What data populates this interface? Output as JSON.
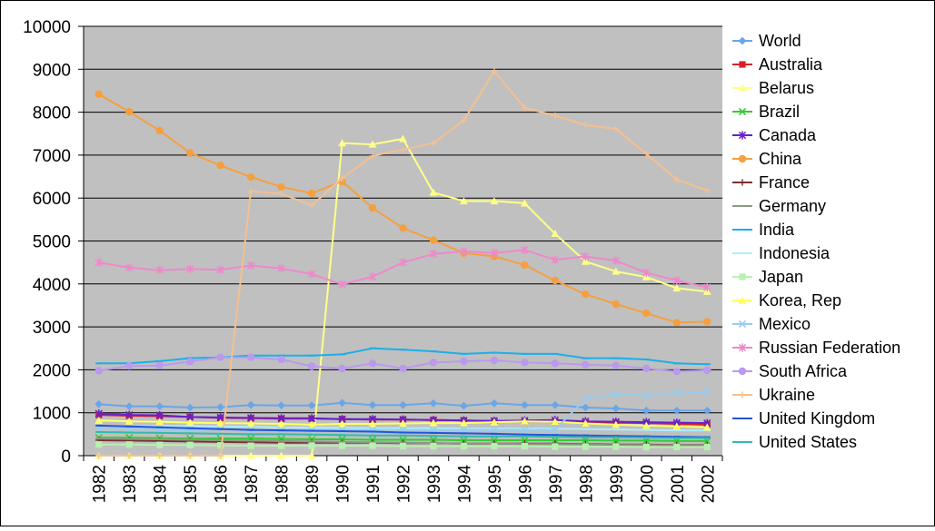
{
  "chart_data": {
    "type": "line",
    "title": "",
    "xlabel": "",
    "ylabel": "",
    "ylim": [
      0,
      10000
    ],
    "ytick_step": 1000,
    "grid": true,
    "plot_background": "#c0c0c0",
    "legend_position": "right",
    "x": [
      "1982",
      "1983",
      "1984",
      "1985",
      "1986",
      "1987",
      "1988",
      "1989",
      "1990",
      "1991",
      "1992",
      "1993",
      "1994",
      "1995",
      "1996",
      "1997",
      "1998",
      "1999",
      "2000",
      "2001",
      "2002"
    ],
    "y_ticks": [
      "0",
      "1000",
      "2000",
      "3000",
      "4000",
      "5000",
      "6000",
      "7000",
      "8000",
      "9000",
      "10000"
    ],
    "series": [
      {
        "name": "World",
        "color": "#6aa6e8",
        "marker": "diamond",
        "values": [
          1200,
          1150,
          1150,
          1120,
          1130,
          1180,
          1170,
          1170,
          1230,
          1180,
          1180,
          1220,
          1160,
          1220,
          1180,
          1180,
          1120,
          1100,
          1050,
          1050,
          1050
        ]
      },
      {
        "name": "Australia",
        "color": "#d8202a",
        "marker": "square",
        "values": [
          950,
          930,
          920,
          900,
          880,
          870,
          860,
          860,
          850,
          840,
          840,
          830,
          820,
          810,
          800,
          790,
          780,
          770,
          760,
          740,
          720
        ]
      },
      {
        "name": "Belarus",
        "color": "#ffff88",
        "marker": "triangle",
        "values": [
          0,
          0,
          0,
          0,
          0,
          0,
          0,
          0,
          7280,
          7250,
          7380,
          6130,
          5930,
          5930,
          5880,
          5170,
          4520,
          4290,
          4160,
          3900,
          3820
        ]
      },
      {
        "name": "Brazil",
        "color": "#33cc33",
        "marker": "x",
        "values": [
          420,
          420,
          410,
          400,
          400,
          400,
          390,
          380,
          380,
          370,
          370,
          370,
          360,
          360,
          360,
          360,
          360,
          350,
          350,
          340,
          340
        ]
      },
      {
        "name": "Canada",
        "color": "#6622cc",
        "marker": "star",
        "values": [
          980,
          950,
          940,
          900,
          890,
          880,
          870,
          870,
          850,
          850,
          840,
          830,
          820,
          810,
          820,
          830,
          800,
          790,
          780,
          770,
          760
        ]
      },
      {
        "name": "China",
        "color": "#f4a040",
        "marker": "circle",
        "values": [
          8420,
          8010,
          7570,
          7050,
          6760,
          6490,
          6260,
          6110,
          6390,
          5770,
          5300,
          5020,
          4720,
          4640,
          4440,
          4080,
          3760,
          3530,
          3320,
          3100,
          3120
        ]
      },
      {
        "name": "France",
        "color": "#7a3030",
        "marker": "plus",
        "values": [
          360,
          350,
          340,
          330,
          320,
          310,
          300,
          300,
          300,
          300,
          290,
          290,
          280,
          280,
          280,
          280,
          270,
          260,
          260,
          250,
          250
        ]
      },
      {
        "name": "Germany",
        "color": "#8a9a80",
        "marker": "dash",
        "values": [
          400,
          390,
          380,
          370,
          360,
          350,
          340,
          330,
          320,
          310,
          300,
          290,
          280,
          280,
          270,
          270,
          260,
          250,
          250,
          240,
          240
        ]
      },
      {
        "name": "India",
        "color": "#1ab0e8",
        "marker": "dash",
        "values": [
          2150,
          2150,
          2200,
          2270,
          2290,
          2330,
          2330,
          2330,
          2360,
          2500,
          2470,
          2430,
          2370,
          2400,
          2370,
          2370,
          2270,
          2270,
          2240,
          2150,
          2130
        ]
      },
      {
        "name": "Indonesia",
        "color": "#aaeeff",
        "marker": "dash",
        "values": [
          700,
          690,
          690,
          690,
          680,
          670,
          660,
          650,
          650,
          640,
          640,
          640,
          630,
          630,
          630,
          630,
          620,
          610,
          600,
          590,
          590
        ]
      },
      {
        "name": "Japan",
        "color": "#b8f0b0",
        "marker": "square",
        "values": [
          260,
          260,
          250,
          250,
          240,
          230,
          230,
          230,
          230,
          230,
          220,
          220,
          220,
          220,
          220,
          210,
          210,
          210,
          200,
          200,
          200
        ]
      },
      {
        "name": "Korea, Rep",
        "color": "#ffff66",
        "marker": "triangle",
        "values": [
          820,
          800,
          790,
          770,
          760,
          750,
          740,
          720,
          740,
          740,
          750,
          760,
          760,
          780,
          800,
          790,
          750,
          720,
          700,
          680,
          660
        ]
      },
      {
        "name": "Mexico",
        "color": "#99ccee",
        "marker": "x",
        "values": [
          620,
          610,
          610,
          600,
          610,
          600,
          600,
          600,
          600,
          600,
          600,
          600,
          600,
          600,
          600,
          600,
          1330,
          1430,
          1400,
          1460,
          1490
        ]
      },
      {
        "name": "Russian Federation",
        "color": "#ee88cc",
        "marker": "star",
        "values": [
          4500,
          4380,
          4320,
          4350,
          4330,
          4430,
          4360,
          4230,
          3990,
          4170,
          4500,
          4700,
          4760,
          4720,
          4790,
          4560,
          4640,
          4540,
          4260,
          4080,
          3920
        ]
      },
      {
        "name": "South Africa",
        "color": "#bb99ee",
        "marker": "circle",
        "values": [
          1980,
          2090,
          2100,
          2190,
          2290,
          2290,
          2240,
          2080,
          2030,
          2150,
          2030,
          2170,
          2200,
          2220,
          2170,
          2150,
          2120,
          2100,
          2030,
          1960,
          1990
        ]
      },
      {
        "name": "Ukraine",
        "color": "#f4c090",
        "marker": "plus",
        "values": [
          0,
          0,
          0,
          0,
          0,
          6160,
          6100,
          5830,
          6460,
          6980,
          7130,
          7280,
          7810,
          8960,
          8100,
          7920,
          7700,
          7610,
          7030,
          6430,
          6180
        ]
      },
      {
        "name": "United Kingdom",
        "color": "#2255dd",
        "marker": "dash",
        "values": [
          700,
          680,
          660,
          640,
          620,
          600,
          590,
          580,
          570,
          560,
          540,
          530,
          520,
          510,
          490,
          480,
          470,
          460,
          450,
          440,
          430
        ]
      },
      {
        "name": "United States",
        "color": "#33bbaa",
        "marker": "dash",
        "values": [
          550,
          540,
          530,
          520,
          510,
          500,
          500,
          490,
          480,
          470,
          470,
          460,
          450,
          450,
          450,
          440,
          430,
          430,
          420,
          410,
          410
        ]
      }
    ]
  }
}
